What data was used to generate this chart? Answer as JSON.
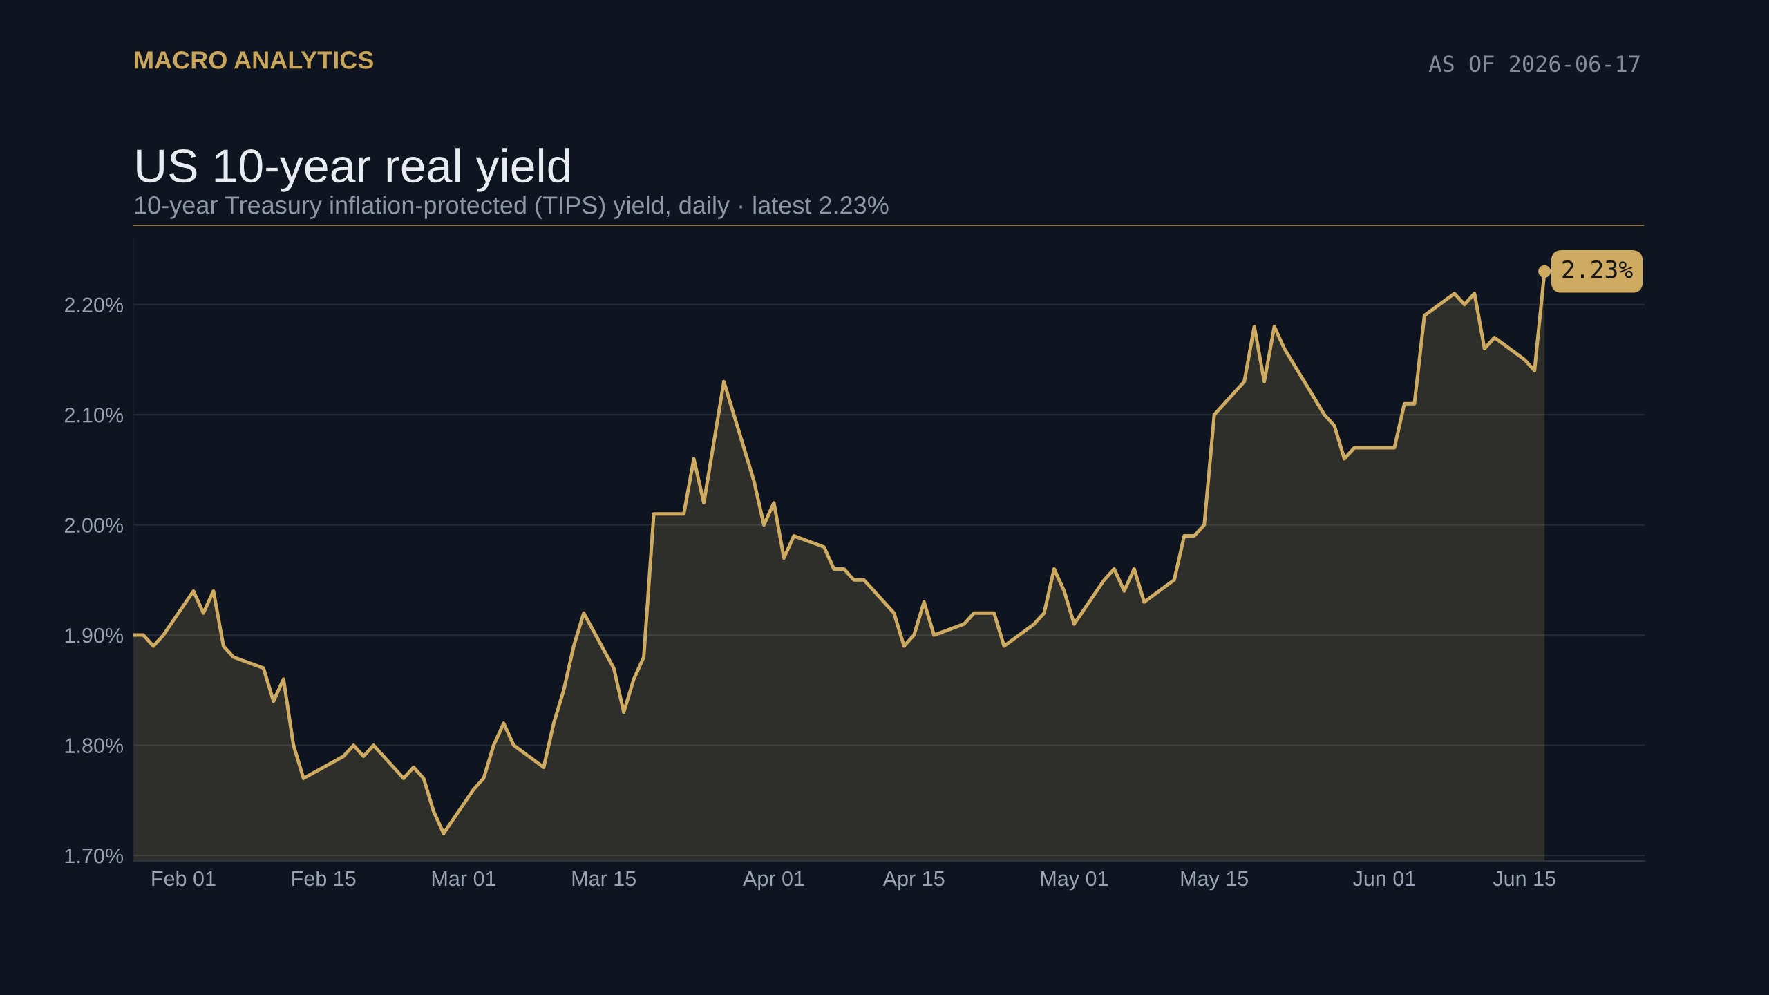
{
  "chart_data": {
    "type": "area",
    "title": "US 10-year real yield",
    "subtitle": "10-year Treasury inflation-protected (TIPS) yield, daily · latest 2.23%",
    "annotations": [
      "MACRO ANALYTICS",
      "AS OF 2026-06-17",
      {
        "text": "2.23%",
        "x": "2026-06-17",
        "y": 2.23
      }
    ],
    "x": [
      "2026-01-27",
      "2026-01-28",
      "2026-01-29",
      "2026-01-30",
      "2026-02-02",
      "2026-02-03",
      "2026-02-04",
      "2026-02-05",
      "2026-02-06",
      "2026-02-09",
      "2026-02-10",
      "2026-02-11",
      "2026-02-12",
      "2026-02-13",
      "2026-02-17",
      "2026-02-18",
      "2026-02-19",
      "2026-02-20",
      "2026-02-23",
      "2026-02-24",
      "2026-02-25",
      "2026-02-26",
      "2026-02-27",
      "2026-03-02",
      "2026-03-03",
      "2026-03-04",
      "2026-03-05",
      "2026-03-06",
      "2026-03-09",
      "2026-03-10",
      "2026-03-11",
      "2026-03-12",
      "2026-03-13",
      "2026-03-16",
      "2026-03-17",
      "2026-03-18",
      "2026-03-19",
      "2026-03-20",
      "2026-03-23",
      "2026-03-24",
      "2026-03-25",
      "2026-03-27",
      "2026-03-30",
      "2026-03-31",
      "2026-04-01",
      "2026-04-02",
      "2026-04-03",
      "2026-04-06",
      "2026-04-07",
      "2026-04-08",
      "2026-04-09",
      "2026-04-10",
      "2026-04-13",
      "2026-04-14",
      "2026-04-15",
      "2026-04-16",
      "2026-04-17",
      "2026-04-20",
      "2026-04-21",
      "2026-04-22",
      "2026-04-23",
      "2026-04-24",
      "2026-04-27",
      "2026-04-28",
      "2026-04-29",
      "2026-04-30",
      "2026-05-01",
      "2026-05-04",
      "2026-05-05",
      "2026-05-06",
      "2026-05-07",
      "2026-05-08",
      "2026-05-11",
      "2026-05-12",
      "2026-05-13",
      "2026-05-14",
      "2026-05-15",
      "2026-05-18",
      "2026-05-19",
      "2026-05-20",
      "2026-05-21",
      "2026-05-22",
      "2026-05-26",
      "2026-05-27",
      "2026-05-28",
      "2026-05-29",
      "2026-06-01",
      "2026-06-02",
      "2026-06-03",
      "2026-06-04",
      "2026-06-05",
      "2026-06-08",
      "2026-06-09",
      "2026-06-10",
      "2026-06-11",
      "2026-06-12",
      "2026-06-15",
      "2026-06-16",
      "2026-06-17"
    ],
    "series": [
      {
        "color": "#cfab62",
        "values": [
          1.9,
          1.9,
          1.89,
          1.9,
          1.94,
          1.92,
          1.94,
          1.89,
          1.88,
          1.87,
          1.84,
          1.86,
          1.8,
          1.77,
          1.79,
          1.8,
          1.79,
          1.8,
          1.77,
          1.78,
          1.77,
          1.74,
          1.72,
          1.76,
          1.77,
          1.8,
          1.82,
          1.8,
          1.78,
          1.82,
          1.85,
          1.89,
          1.92,
          1.87,
          1.83,
          1.86,
          1.88,
          2.01,
          2.01,
          2.06,
          2.02,
          2.13,
          2.04,
          2.0,
          2.02,
          1.97,
          1.99,
          1.98,
          1.96,
          1.96,
          1.95,
          1.95,
          1.92,
          1.89,
          1.9,
          1.93,
          1.9,
          1.91,
          1.92,
          1.92,
          1.92,
          1.89,
          1.91,
          1.92,
          1.96,
          1.94,
          1.91,
          1.95,
          1.96,
          1.94,
          1.96,
          1.93,
          1.95,
          1.99,
          1.99,
          2.0,
          2.1,
          2.13,
          2.18,
          2.13,
          2.18,
          2.16,
          2.1,
          2.09,
          2.06,
          2.07,
          2.07,
          2.07,
          2.11,
          2.11,
          2.19,
          2.21,
          2.2,
          2.21,
          2.16,
          2.17,
          2.15,
          2.14,
          2.23
        ]
      }
    ],
    "xlim": [
      "2026-01-27",
      "2026-06-27"
    ],
    "xticks": [
      {
        "value": "2026-02-01",
        "label": "Feb 01"
      },
      {
        "value": "2026-02-15",
        "label": "Feb 15"
      },
      {
        "value": "2026-03-01",
        "label": "Mar 01"
      },
      {
        "value": "2026-03-15",
        "label": "Mar 15"
      },
      {
        "value": "2026-04-01",
        "label": "Apr 01"
      },
      {
        "value": "2026-04-15",
        "label": "Apr 15"
      },
      {
        "value": "2026-05-01",
        "label": "May 01"
      },
      {
        "value": "2026-05-15",
        "label": "May 15"
      },
      {
        "value": "2026-06-01",
        "label": "Jun 01"
      },
      {
        "value": "2026-06-15",
        "label": "Jun 15"
      }
    ],
    "ylim": [
      1.695,
      2.26
    ],
    "yticks": [
      {
        "value": 1.7,
        "label": "1.70%"
      },
      {
        "value": 1.8,
        "label": "1.80%"
      },
      {
        "value": 1.9,
        "label": "1.90%"
      },
      {
        "value": 2.0,
        "label": "2.00%"
      },
      {
        "value": 2.1,
        "label": "2.10%"
      },
      {
        "value": 2.2,
        "label": "2.20%"
      }
    ],
    "grid": "y"
  }
}
